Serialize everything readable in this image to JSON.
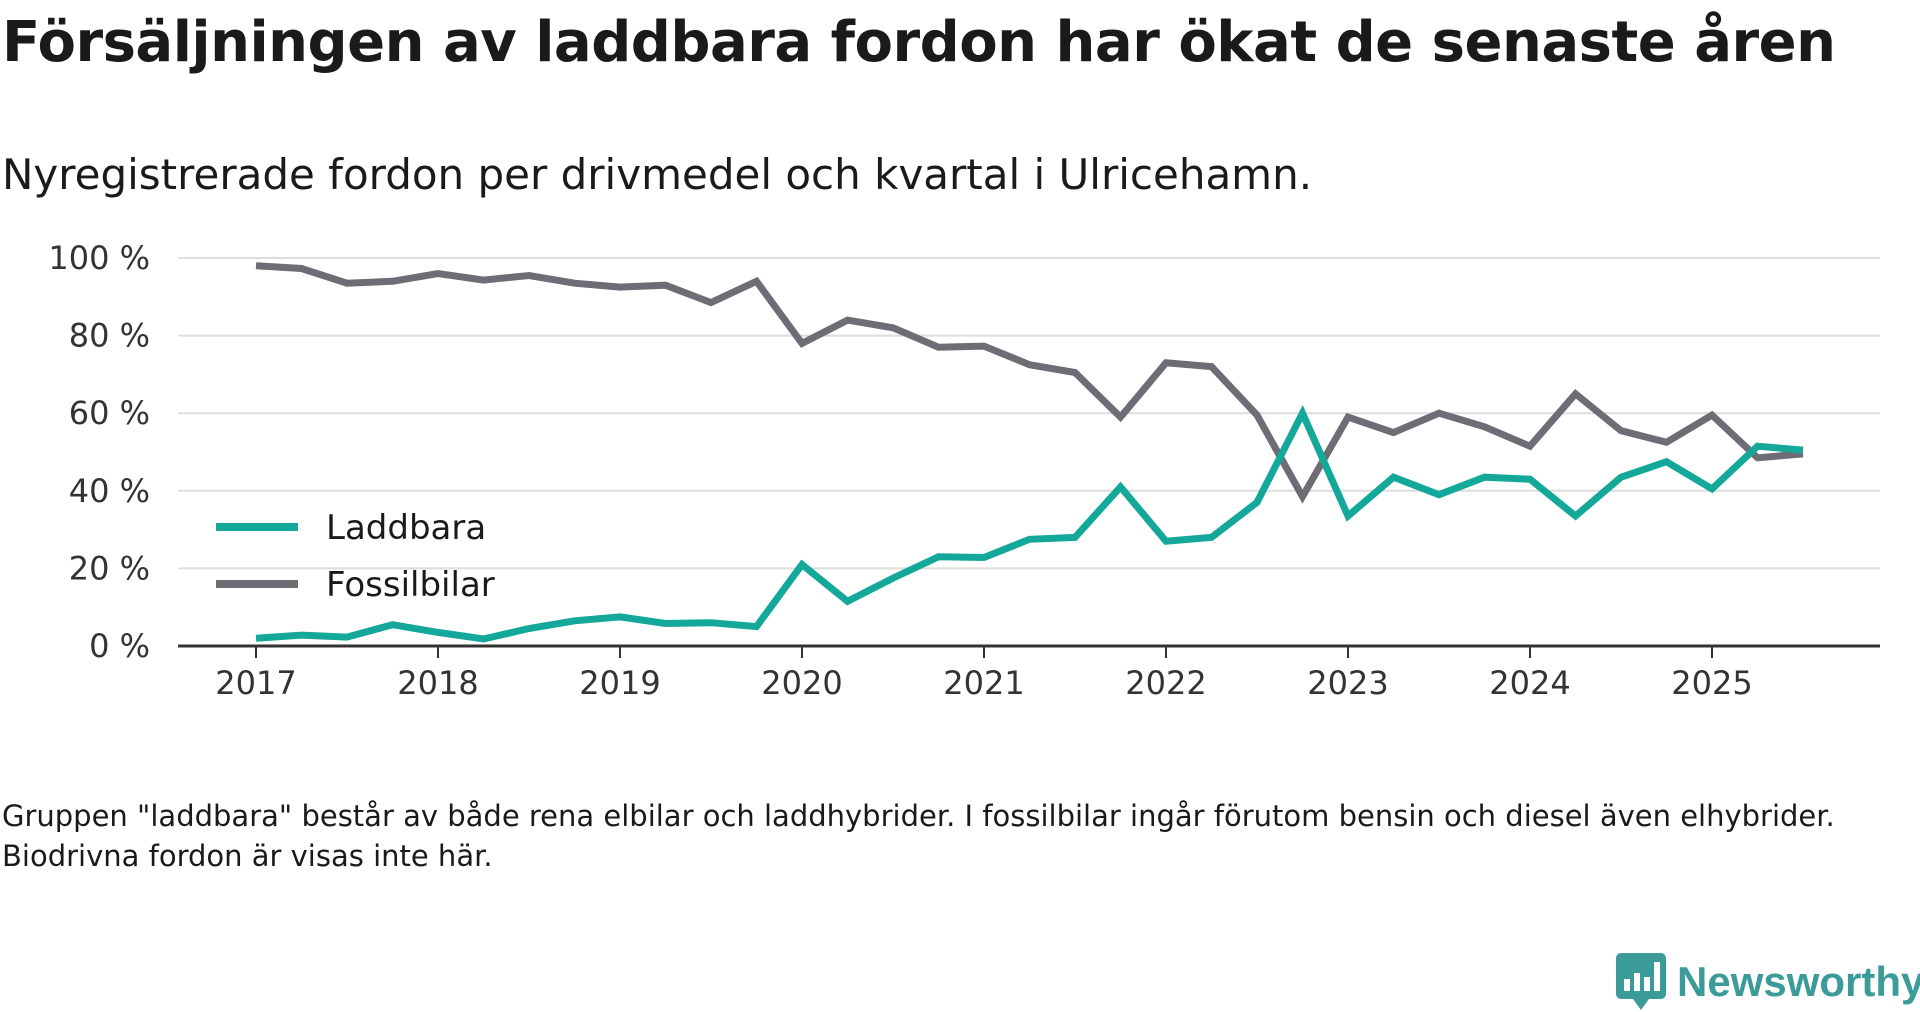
{
  "header": {
    "title": "Försäljningen av laddbara fordon har ökat de senaste åren",
    "subtitle": "Nyregistrerade fordon per drivmedel och kvartal i Ulricehamn."
  },
  "footnote": "Gruppen \"laddbara\" består av både rena elbilar och laddhybrider. I fossilbilar ingår förutom bensin och diesel även elhybrider. Biodrivna fordon är visas inte här.",
  "brand": {
    "name": "Newsworthy",
    "color": "#3a9b98"
  },
  "colors": {
    "laddbara": "#13a89a",
    "fossil": "#6e6c75",
    "grid": "#dddddd",
    "axis": "#333333"
  },
  "chart_data": {
    "type": "line",
    "title": "Försäljningen av laddbara fordon har ökat de senaste åren",
    "subtitle": "Nyregistrerade fordon per drivmedel och kvartal i Ulricehamn.",
    "xlabel": "",
    "ylabel": "",
    "ylim": [
      0,
      100
    ],
    "yticks": [
      "0 %",
      "20 %",
      "40 %",
      "60 %",
      "80 %",
      "100 %"
    ],
    "xticks": [
      "2017",
      "2018",
      "2019",
      "2020",
      "2021",
      "2022",
      "2023",
      "2024",
      "2025"
    ],
    "x_start_year": 2017,
    "x": [
      "2017 Q1",
      "2017 Q2",
      "2017 Q3",
      "2017 Q4",
      "2018 Q1",
      "2018 Q2",
      "2018 Q3",
      "2018 Q4",
      "2019 Q1",
      "2019 Q2",
      "2019 Q3",
      "2019 Q4",
      "2020 Q1",
      "2020 Q2",
      "2020 Q3",
      "2020 Q4",
      "2021 Q1",
      "2021 Q2",
      "2021 Q3",
      "2021 Q4",
      "2022 Q1",
      "2022 Q2",
      "2022 Q3",
      "2022 Q4",
      "2023 Q1",
      "2023 Q2",
      "2023 Q3",
      "2023 Q4",
      "2024 Q1",
      "2024 Q2",
      "2024 Q3",
      "2024 Q4",
      "2025 Q1",
      "2025 Q2",
      "2025 Q3"
    ],
    "legend": "left, inside",
    "series": [
      {
        "name": "Laddbara",
        "key": "laddbara",
        "values": [
          2,
          2.8,
          2.3,
          5.5,
          3.5,
          1.8,
          4.5,
          6.5,
          7.5,
          5.8,
          6,
          5,
          21,
          11.5,
          17.5,
          23,
          22.8,
          27.5,
          28,
          41,
          27,
          28,
          37,
          60,
          33.5,
          43.5,
          39,
          43.5,
          43,
          33.5,
          43.5,
          47.5,
          40.5,
          51.5,
          50.5
        ]
      },
      {
        "name": "Fossilbilar",
        "key": "fossil",
        "values": [
          98,
          97.3,
          93.5,
          94,
          96,
          94.3,
          95.5,
          93.5,
          92.5,
          93,
          88.5,
          94,
          78,
          84,
          82,
          77,
          77.3,
          72.5,
          70.5,
          59,
          73,
          72,
          59.5,
          38.5,
          59,
          55,
          60,
          56.5,
          51.5,
          65,
          55.5,
          52.5,
          59.5,
          48.5,
          49.5
        ]
      }
    ]
  }
}
